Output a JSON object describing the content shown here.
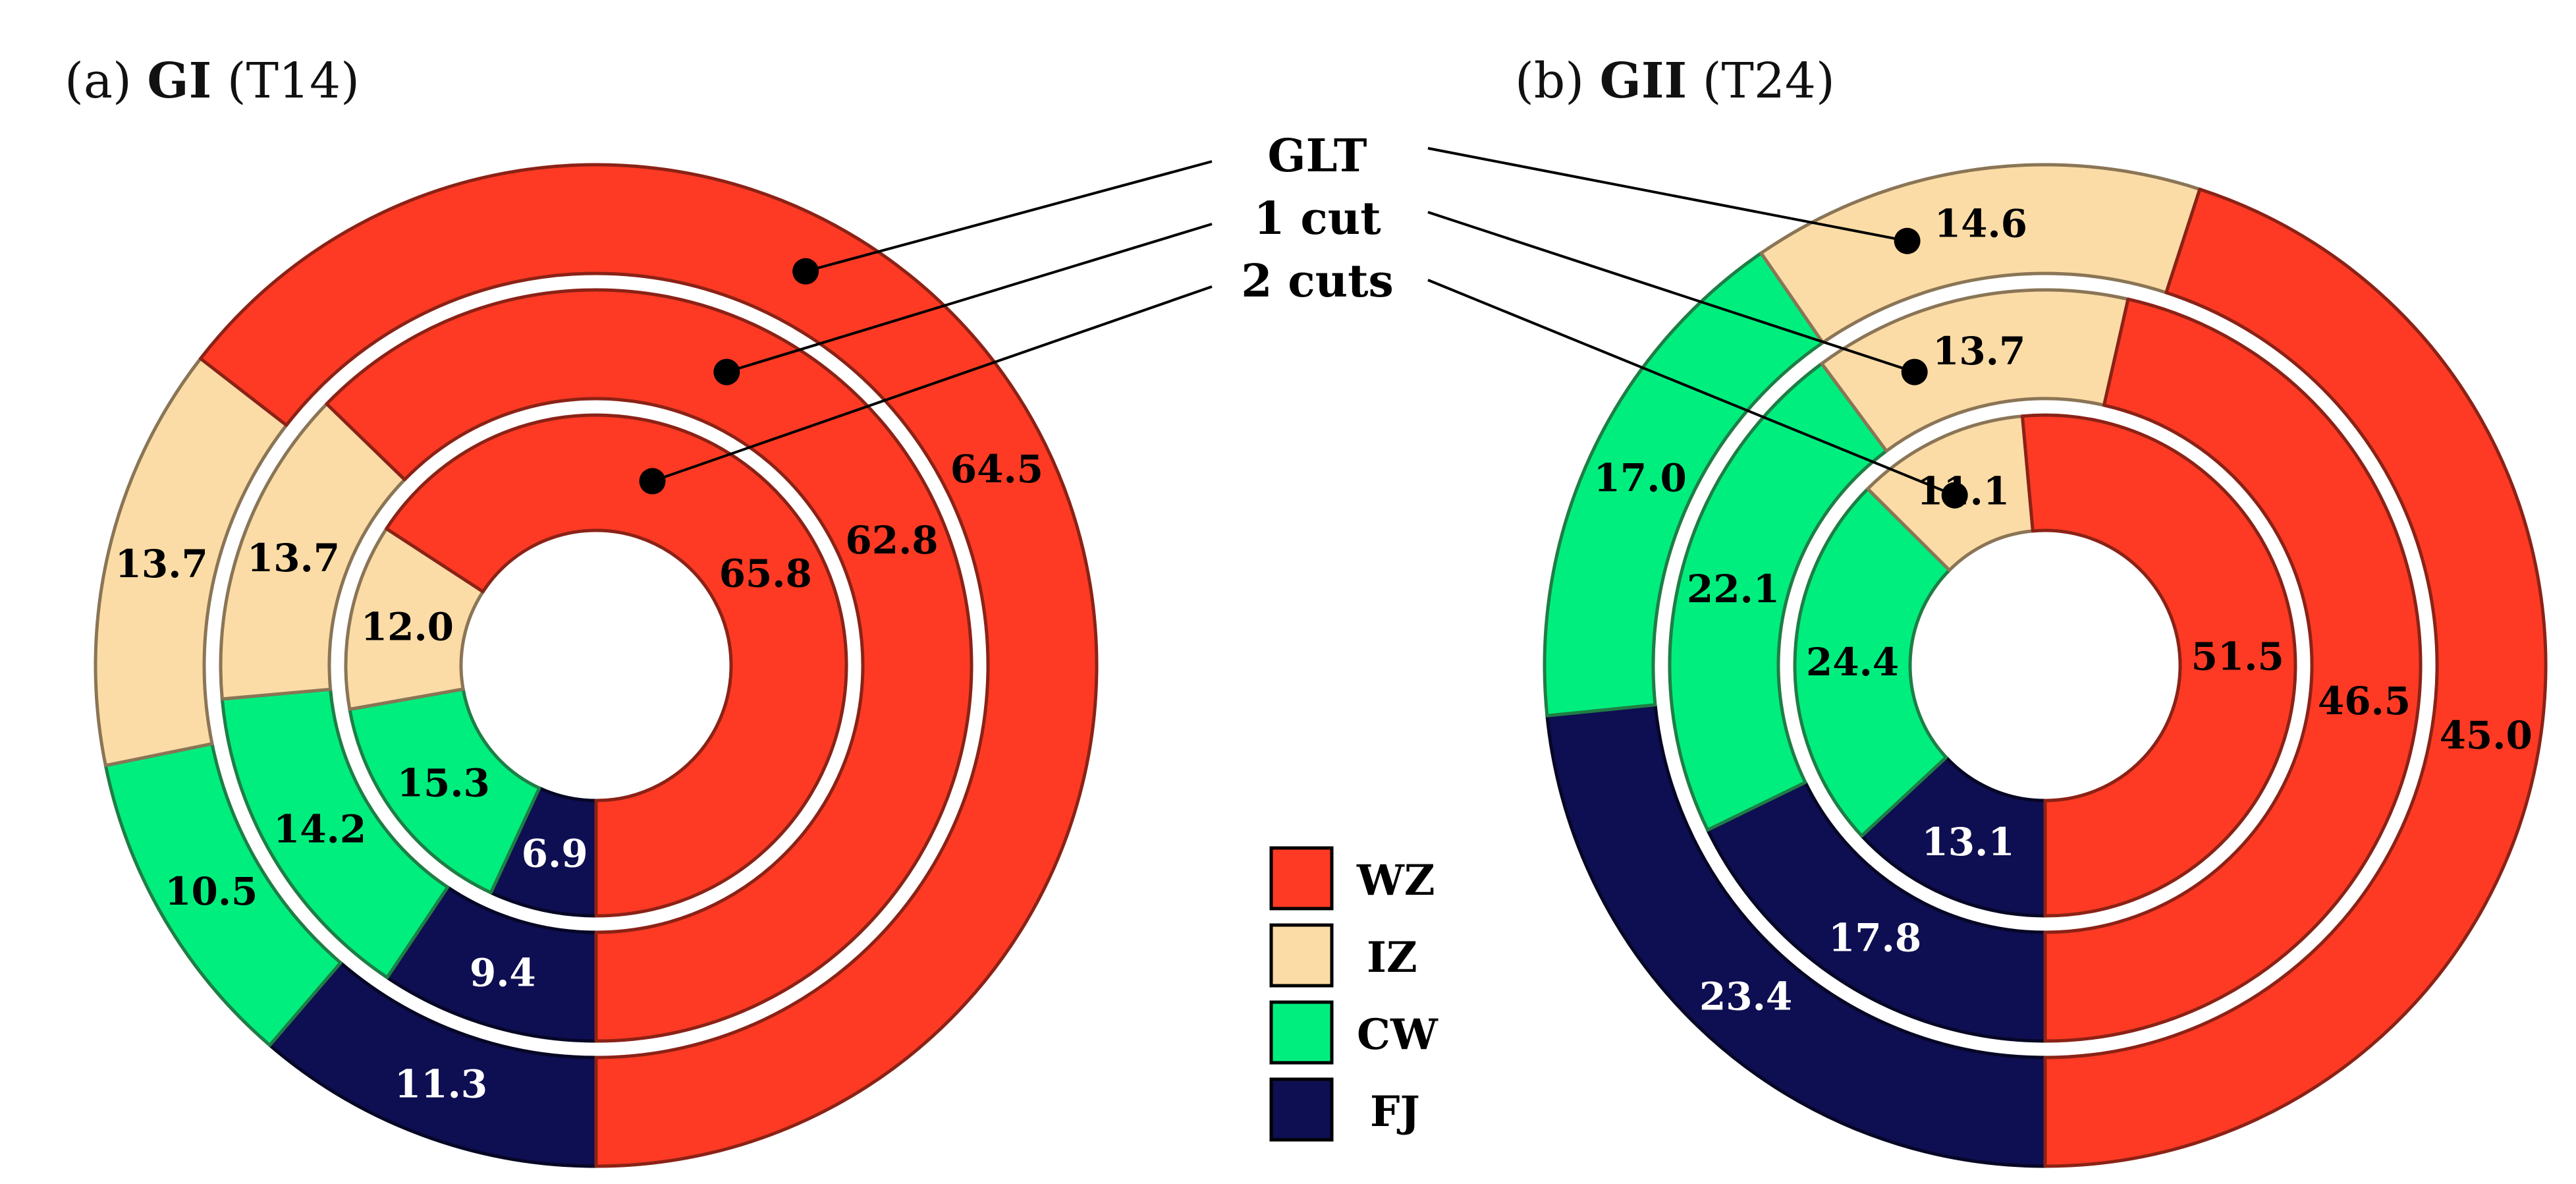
{
  "chart_data": {
    "type": "pie",
    "subtype": "multi-ring donut",
    "category_names": [
      "WZ",
      "IZ",
      "CW",
      "FJ"
    ],
    "colors": {
      "WZ": "#ff3a24",
      "IZ": "#fcdca6",
      "CW": "#00ee7e",
      "FJ": "#0e0e52"
    },
    "edge_colors": {
      "WZ": "#8b2216",
      "IZ": "#8a7556",
      "CW": "#1f7d45",
      "FJ": "#060626"
    },
    "text_colors": {
      "WZ": "#000000",
      "IZ": "#000000",
      "CW": "#000000",
      "FJ": "#ffffff"
    },
    "ring_labels": [
      "GLT",
      "1 cut",
      "2 cuts"
    ],
    "legend": [
      "WZ",
      "IZ",
      "CW",
      "FJ"
    ],
    "panels": [
      {
        "title_prefix": "(a)",
        "title_bold": "GI",
        "title_suffix": "(T14)",
        "rings": [
          {
            "name": "GLT",
            "values": [
              64.5,
              13.7,
              10.5,
              11.3
            ],
            "labels": [
              "64.5",
              "13.7",
              "10.5",
              "11.3"
            ]
          },
          {
            "name": "1 cut",
            "values": [
              62.8,
              13.7,
              14.2,
              9.4
            ],
            "labels": [
              "62.8",
              "13.7",
              "14.2",
              "9.4"
            ]
          },
          {
            "name": "2 cuts",
            "values": [
              65.8,
              12.0,
              15.3,
              6.9
            ],
            "labels": [
              "65.8",
              "12.0",
              "15.3",
              "6.9"
            ]
          }
        ]
      },
      {
        "title_prefix": "(b)",
        "title_bold": "GII",
        "title_suffix": "(T24)",
        "rings": [
          {
            "name": "GLT",
            "values": [
              45.0,
              14.6,
              17.0,
              23.4
            ],
            "labels": [
              "45.0",
              "14.6",
              "17.0",
              "23.4"
            ]
          },
          {
            "name": "1 cut",
            "values": [
              46.5,
              13.7,
              22.1,
              17.8
            ],
            "labels": [
              "46.5",
              "13.7",
              "22.1",
              "17.8"
            ]
          },
          {
            "name": "2 cuts",
            "values": [
              51.5,
              11.1,
              24.4,
              13.1
            ],
            "labels": [
              "51.5",
              "11.1",
              "24.4",
              "13.1"
            ]
          }
        ]
      }
    ]
  }
}
